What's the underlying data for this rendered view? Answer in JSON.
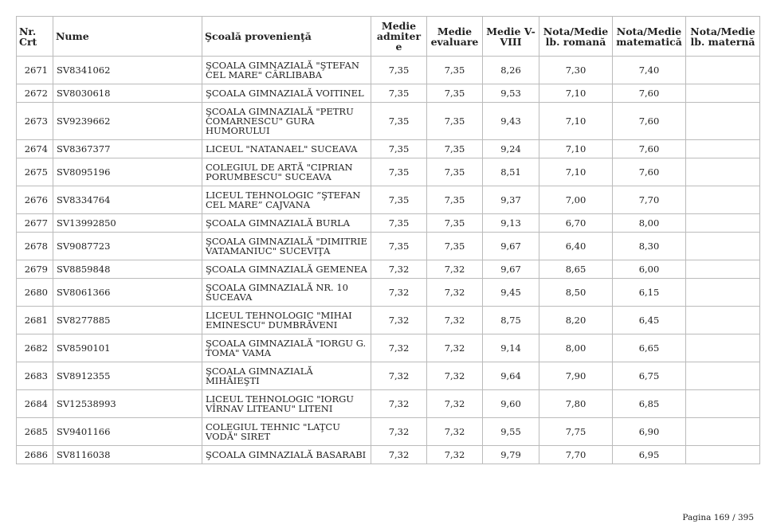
{
  "table": {
    "header": [
      "Nr. Crt",
      "Nume",
      "Şcoală provenienţă",
      "Medie admitere",
      "Medie evaluare",
      "Medie V-VIII",
      "Nota/Medie lb. romană",
      "Nota/Medie matematică",
      "Nota/Medie lb. maternă"
    ],
    "rows": [
      [
        "2671",
        "SV8341062",
        "ŞCOALA GIMNAZIALĂ \"ŞTEFAN CEL MARE\" CÂRLIBABA",
        "7,35",
        "7,35",
        "8,26",
        "7,30",
        "7,40"
      ],
      [
        "2672",
        "SV8030618",
        "ŞCOALA GIMNAZIALĂ VOITINEL",
        "7,35",
        "7,35",
        "9,53",
        "7,10",
        "7,60"
      ],
      [
        "2673",
        "SV9239662",
        "ŞCOALA GIMNAZIALĂ \"PETRU COMARNESCU\" GURA HUMORULUI",
        "7,35",
        "7,35",
        "9,43",
        "7,10",
        "7,60"
      ],
      [
        "2674",
        "SV8367377",
        "LICEUL \"NATANAEL\" SUCEAVA",
        "7,35",
        "7,35",
        "9,24",
        "7,10",
        "7,60"
      ],
      [
        "2675",
        "SV8095196",
        "COLEGIUL DE ARTĂ \"CIPRIAN PORUMBESCU\" SUCEAVA",
        "7,35",
        "7,35",
        "8,51",
        "7,10",
        "7,60"
      ],
      [
        "2676",
        "SV8334764",
        "LICEUL TEHNOLOGIC ”ŞTEFAN CEL MARE” CAJVANA",
        "7,35",
        "7,35",
        "9,37",
        "7,00",
        "7,70"
      ],
      [
        "2677",
        "SV13992850",
        "ŞCOALA GIMNAZIALĂ BURLA",
        "7,35",
        "7,35",
        "9,13",
        "6,70",
        "8,00"
      ],
      [
        "2678",
        "SV9087723",
        "ŞCOALA GIMNAZIALĂ \"DIMITRIE VATAMANIUC\" SUCEVIŢA",
        "7,35",
        "7,35",
        "9,67",
        "6,40",
        "8,30"
      ],
      [
        "2679",
        "SV8859848",
        "ŞCOALA GIMNAZIALĂ GEMENEA",
        "7,32",
        "7,32",
        "9,67",
        "8,65",
        "6,00"
      ],
      [
        "2680",
        "SV8061366",
        "ŞCOALA GIMNAZIALĂ NR. 10 SUCEAVA",
        "7,32",
        "7,32",
        "9,45",
        "8,50",
        "6,15"
      ],
      [
        "2681",
        "SV8277885",
        "LICEUL TEHNOLOGIC \"MIHAI EMINESCU\" DUMBRĂVENI",
        "7,32",
        "7,32",
        "8,75",
        "8,20",
        "6,45"
      ],
      [
        "2682",
        "SV8590101",
        "ŞCOALA GIMNAZIALĂ \"IORGU G. TOMA\" VAMA",
        "7,32",
        "7,32",
        "9,14",
        "8,00",
        "6,65"
      ],
      [
        "2683",
        "SV8912355",
        "ŞCOALA GIMNAZIALĂ MIHĂIEŞTI",
        "7,32",
        "7,32",
        "9,64",
        "7,90",
        "6,75"
      ],
      [
        "2684",
        "SV12538993",
        "LICEUL TEHNOLOGIC \"IORGU VÎRNAV LITEANU\" LITENI",
        "7,32",
        "7,32",
        "9,60",
        "7,80",
        "6,85"
      ],
      [
        "2685",
        "SV9401166",
        "COLEGIUL TEHNIC \"LAŢCU VODĂ\" SIRET",
        "7,32",
        "7,32",
        "9,55",
        "7,75",
        "6,90"
      ],
      [
        "2686",
        "SV8116038",
        "ŞCOALA GIMNAZIALĂ BASARABI",
        "7,32",
        "7,32",
        "9,79",
        "7,70",
        "6,95"
      ]
    ]
  },
  "footer": {
    "page": "Pagina 169 / 395"
  }
}
